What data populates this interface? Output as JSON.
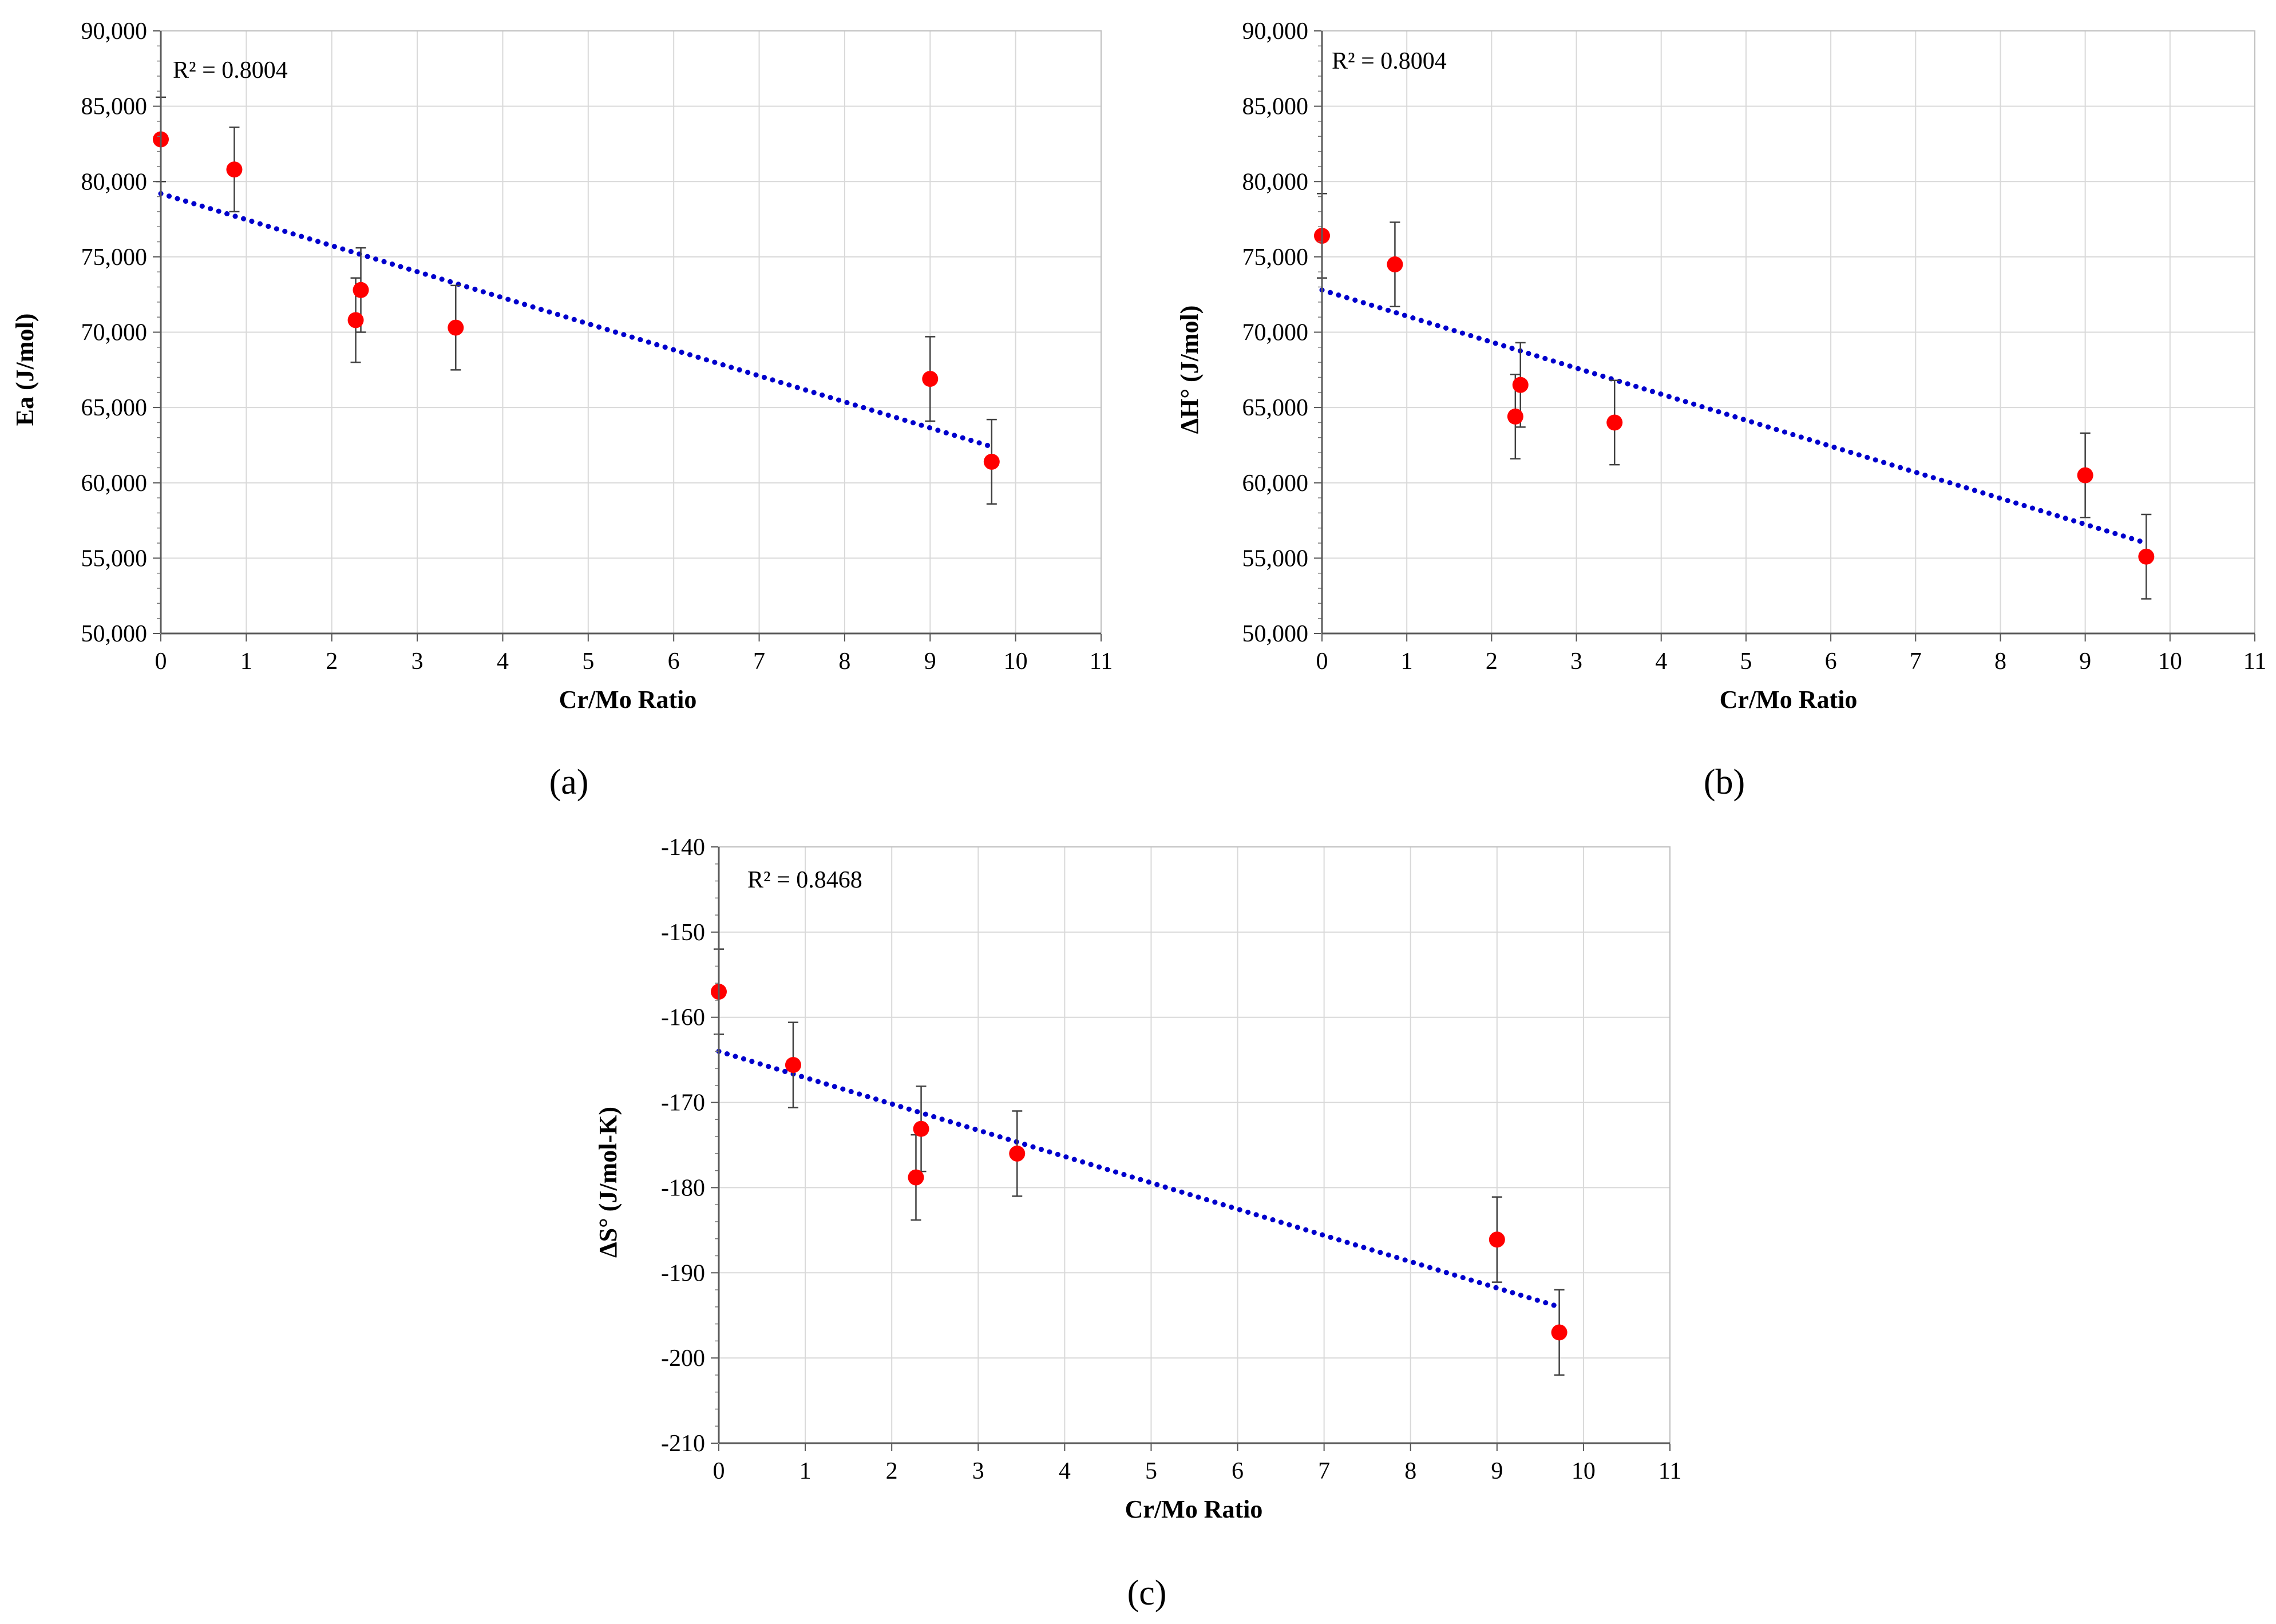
{
  "chart_data": [
    {
      "type": "scatter",
      "panel_label": "(a)",
      "xlabel": "Cr/Mo Ratio",
      "ylabel": "Ea (J/mol)",
      "annotation": "R² = 0.8004",
      "xlim": [
        0,
        11
      ],
      "ylim": [
        50000,
        90000
      ],
      "x_ticks": [
        "0",
        "1",
        "2",
        "3",
        "4",
        "5",
        "6",
        "7",
        "8",
        "9",
        "10",
        "11"
      ],
      "y_ticks": [
        "50,000",
        "55,000",
        "60,000",
        "65,000",
        "70,000",
        "75,000",
        "80,000",
        "85,000",
        "90,000"
      ],
      "series": [
        {
          "name": "Ea",
          "color": "#ff0000",
          "x": [
            0,
            0.86,
            2.28,
            2.34,
            3.45,
            9.0,
            9.72
          ],
          "y": [
            82800,
            80800,
            70800,
            72800,
            70300,
            66900,
            61400
          ],
          "error": [
            2800,
            2800,
            2800,
            2800,
            2800,
            2800,
            2800
          ]
        }
      ],
      "trendline": {
        "type": "linear",
        "color": "#0000cc",
        "x": [
          0,
          9.72
        ],
        "y": [
          79200,
          62400
        ]
      }
    },
    {
      "type": "scatter",
      "panel_label": "(b)",
      "xlabel": "Cr/Mo Ratio",
      "ylabel": "ΔH° (J/mol)",
      "annotation": "R² = 0.8004",
      "xlim": [
        0,
        11
      ],
      "ylim": [
        50000,
        90000
      ],
      "x_ticks": [
        "0",
        "1",
        "2",
        "3",
        "4",
        "5",
        "6",
        "7",
        "8",
        "9",
        "10",
        "11"
      ],
      "y_ticks": [
        "50,000",
        "55,000",
        "60,000",
        "65,000",
        "70,000",
        "75,000",
        "80,000",
        "85,000",
        "90,000"
      ],
      "series": [
        {
          "name": "ΔH°",
          "color": "#ff0000",
          "x": [
            0,
            0.86,
            2.28,
            2.34,
            3.45,
            9.0,
            9.72
          ],
          "y": [
            76400,
            74500,
            64400,
            66500,
            64000,
            60500,
            55100
          ],
          "error": [
            2800,
            2800,
            2800,
            2800,
            2800,
            2800,
            2800
          ]
        }
      ],
      "trendline": {
        "type": "linear",
        "color": "#0000cc",
        "x": [
          0,
          9.72
        ],
        "y": [
          72800,
          56000
        ]
      }
    },
    {
      "type": "scatter",
      "panel_label": "(c)",
      "xlabel": "Cr/Mo Ratio",
      "ylabel": "ΔS° (J/mol-K)",
      "annotation": "R² = 0.8468",
      "xlim": [
        0,
        11
      ],
      "ylim": [
        -210,
        -140
      ],
      "x_ticks": [
        "0",
        "1",
        "2",
        "3",
        "4",
        "5",
        "6",
        "7",
        "8",
        "9",
        "10",
        "11"
      ],
      "y_ticks": [
        "-210",
        "-200",
        "-190",
        "-180",
        "-170",
        "-160",
        "-150",
        "-140"
      ],
      "series": [
        {
          "name": "ΔS°",
          "color": "#ff0000",
          "x": [
            0,
            0.86,
            2.28,
            2.34,
            3.45,
            9.0,
            9.72
          ],
          "y": [
            -157.0,
            -165.6,
            -178.8,
            -173.1,
            -176.0,
            -186.1,
            -197.0
          ],
          "error": [
            5,
            5,
            5,
            5,
            5,
            5,
            5
          ]
        }
      ],
      "trendline": {
        "type": "linear",
        "color": "#0000cc",
        "x": [
          0,
          9.72
        ],
        "y": [
          -164.0,
          -194.0
        ]
      }
    }
  ]
}
